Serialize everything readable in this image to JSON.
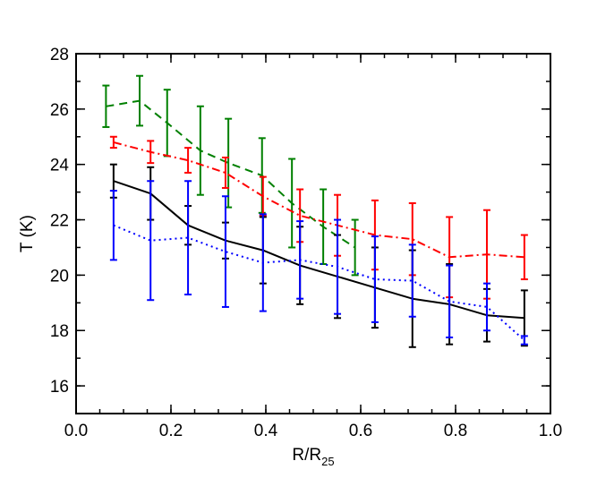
{
  "chart_data": {
    "type": "line",
    "title": "",
    "xlabel": "R/R",
    "xlabel_subscript": "25",
    "ylabel": "T (K)",
    "xlim": [
      0.0,
      1.0
    ],
    "ylim": [
      15.0,
      28.0
    ],
    "x_ticks": [
      0.0,
      0.2,
      0.4,
      0.6,
      0.8,
      1.0
    ],
    "x_tick_labels": [
      "0.0",
      "0.2",
      "0.4",
      "0.6",
      "0.8",
      "1.0"
    ],
    "y_ticks": [
      16,
      18,
      20,
      22,
      24,
      26,
      28
    ],
    "y_tick_labels": [
      "16",
      "18",
      "20",
      "22",
      "24",
      "26",
      "28"
    ],
    "grid": false,
    "series": [
      {
        "name": "green",
        "color": "#008000",
        "dash": "dashed",
        "x": [
          0.063,
          0.134,
          0.192,
          0.262,
          0.321,
          0.392,
          0.455,
          0.521,
          0.588
        ],
        "y": [
          26.1,
          26.3,
          25.5,
          24.5,
          24.05,
          23.6,
          22.6,
          21.75,
          21.0
        ],
        "err": [
          0.75,
          0.9,
          1.2,
          1.6,
          1.6,
          1.35,
          1.6,
          1.35,
          1.0
        ]
      },
      {
        "name": "red",
        "color": "#ff0000",
        "dash": "dashdot",
        "x": [
          0.079,
          0.157,
          0.236,
          0.315,
          0.394,
          0.472,
          0.551,
          0.63,
          0.709,
          0.787,
          0.866,
          0.945
        ],
        "y": [
          24.8,
          24.45,
          24.15,
          23.7,
          22.85,
          22.15,
          21.8,
          21.45,
          21.3,
          20.65,
          20.75,
          20.65
        ],
        "err": [
          0.2,
          0.4,
          0.45,
          0.55,
          0.7,
          0.95,
          1.1,
          1.25,
          1.3,
          1.45,
          1.6,
          0.8
        ]
      },
      {
        "name": "black",
        "color": "#000000",
        "dash": "solid",
        "x": [
          0.079,
          0.157,
          0.236,
          0.315,
          0.394,
          0.472,
          0.551,
          0.63,
          0.709,
          0.787,
          0.866,
          0.945
        ],
        "y": [
          23.4,
          22.95,
          21.8,
          21.25,
          20.9,
          20.35,
          19.95,
          19.55,
          19.15,
          18.95,
          18.55,
          18.45
        ],
        "err": [
          0.6,
          0.95,
          0.7,
          0.65,
          1.2,
          1.4,
          1.5,
          1.45,
          1.75,
          1.45,
          0.95,
          1.0
        ]
      },
      {
        "name": "blue",
        "color": "#0000ff",
        "dash": "dotted",
        "x": [
          0.079,
          0.157,
          0.236,
          0.315,
          0.394,
          0.472,
          0.551,
          0.63,
          0.709,
          0.787,
          0.866,
          0.945
        ],
        "y": [
          21.8,
          21.25,
          21.35,
          20.85,
          20.45,
          20.55,
          20.3,
          19.85,
          19.8,
          19.05,
          18.85,
          17.65
        ],
        "err": [
          1.25,
          2.15,
          2.05,
          2.0,
          1.75,
          1.4,
          1.7,
          1.55,
          1.3,
          1.3,
          0.85,
          0.15
        ]
      }
    ]
  }
}
